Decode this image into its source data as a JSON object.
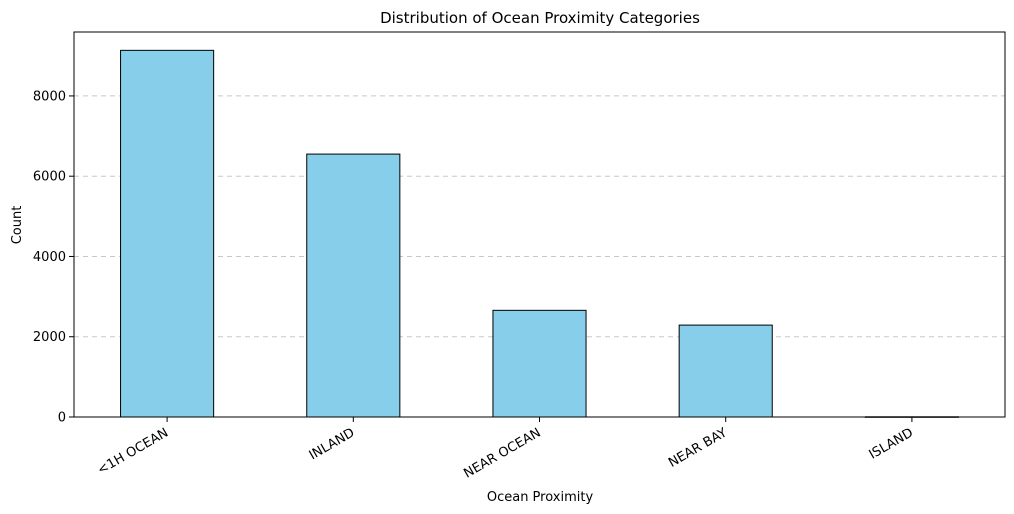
{
  "chart_data": {
    "type": "bar",
    "title": "Distribution of Ocean Proximity Categories",
    "xlabel": "Ocean Proximity",
    "ylabel": "Count",
    "categories": [
      "<1H OCEAN",
      "INLAND",
      "NEAR OCEAN",
      "NEAR BAY",
      "ISLAND"
    ],
    "values": [
      9136,
      6551,
      2658,
      2290,
      5
    ],
    "ylim": [
      0,
      9593
    ],
    "yticks": [
      0,
      2000,
      4000,
      6000,
      8000
    ],
    "grid": "y-dashed",
    "colors": {
      "bar_fill": "#87CEEB",
      "bar_edge": "#000000",
      "grid": "#c8c8c8"
    }
  }
}
